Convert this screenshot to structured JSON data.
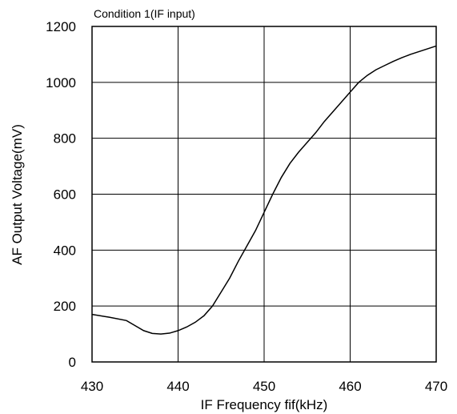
{
  "chart_data": {
    "type": "line",
    "title": "Condition 1(IF input)",
    "xlabel": "IF Frequency fif(kHz)",
    "ylabel": "AF Output Voltage(mV)",
    "xlim": [
      430,
      470
    ],
    "ylim": [
      0,
      1200
    ],
    "xticks": [
      430,
      440,
      450,
      460,
      470
    ],
    "yticks": [
      0,
      200,
      400,
      600,
      800,
      1000,
      1200
    ],
    "grid": true,
    "series": [
      {
        "color": "#000000",
        "x": [
          430,
          432,
          434,
          435,
          436,
          437,
          438,
          439,
          440,
          441,
          442,
          443,
          444,
          445,
          446,
          447,
          448,
          449,
          450,
          451,
          452,
          453,
          454,
          455,
          456,
          457,
          458,
          459,
          460,
          461,
          462,
          463,
          464,
          465,
          466,
          467,
          468,
          469,
          470
        ],
        "y": [
          170,
          160,
          148,
          130,
          112,
          102,
          100,
          103,
          112,
          125,
          142,
          165,
          200,
          250,
          300,
          360,
          415,
          470,
          535,
          600,
          660,
          710,
          750,
          785,
          820,
          860,
          895,
          930,
          965,
          1000,
          1025,
          1045,
          1060,
          1075,
          1088,
          1100,
          1110,
          1120,
          1130
        ]
      }
    ]
  }
}
